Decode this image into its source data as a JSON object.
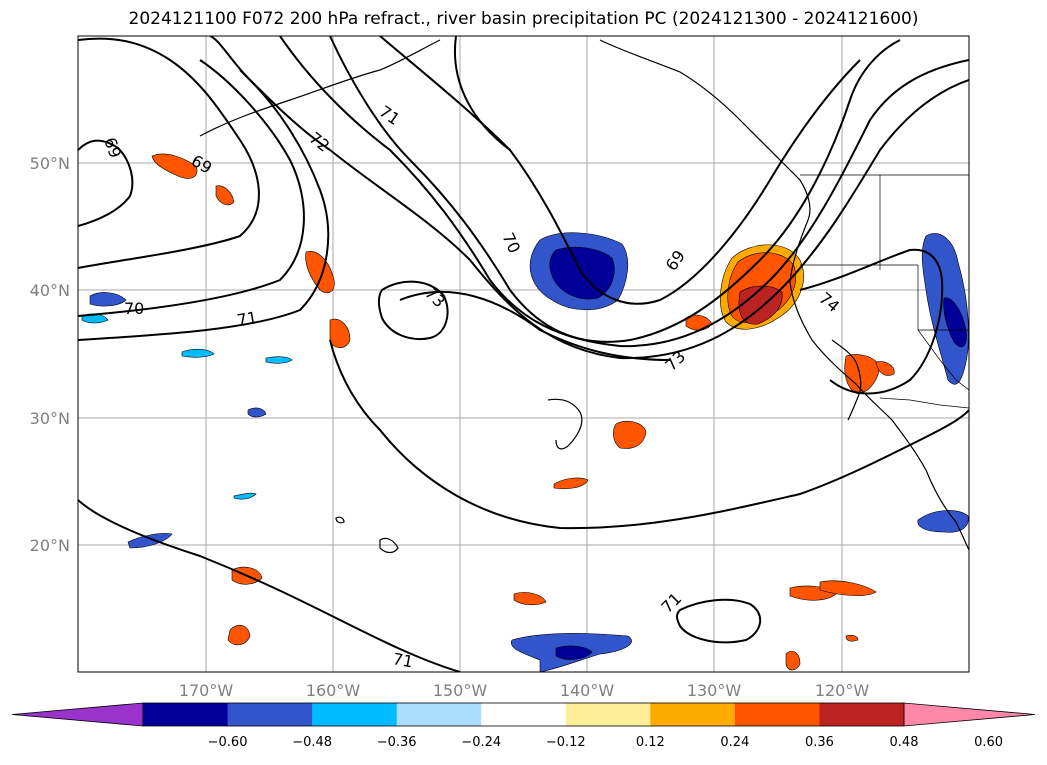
{
  "title": "2024121100 F072 200 hPa refract., river basin precipitation PC (2024121300 - 2024121600)",
  "lat_ticks": [
    "50°N",
    "40°N",
    "30°N",
    "20°N"
  ],
  "lon_ticks": [
    "170°W",
    "160°W",
    "150°W",
    "140°W",
    "130°W",
    "120°W"
  ],
  "contour_labels": [
    "69",
    "69",
    "72",
    "71",
    "70",
    "70",
    "71",
    "73",
    "69",
    "73",
    "74",
    "71",
    "71"
  ],
  "colorbar": {
    "ticks": [
      "−0.60",
      "−0.48",
      "−0.36",
      "−0.24",
      "−0.12",
      "0.12",
      "0.24",
      "0.36",
      "0.48",
      "0.60"
    ],
    "colors": [
      "#9933cc",
      "#000099",
      "#3355cc",
      "#00bbff",
      "#aaddff",
      "#ffffff",
      "#ffee99",
      "#ffaa00",
      "#ff5500",
      "#bb2222",
      "#ff88aa"
    ]
  },
  "colors": {
    "land_line": "#000000",
    "grid": "#aaaaaa",
    "negative_strong": "#000099",
    "negative_mid": "#3355cc",
    "negative_weak": "#00bbff",
    "positive_weak": "#ffee99",
    "positive_mid": "#ffaa00",
    "positive_strong": "#ff5500",
    "positive_max": "#bb2222"
  }
}
